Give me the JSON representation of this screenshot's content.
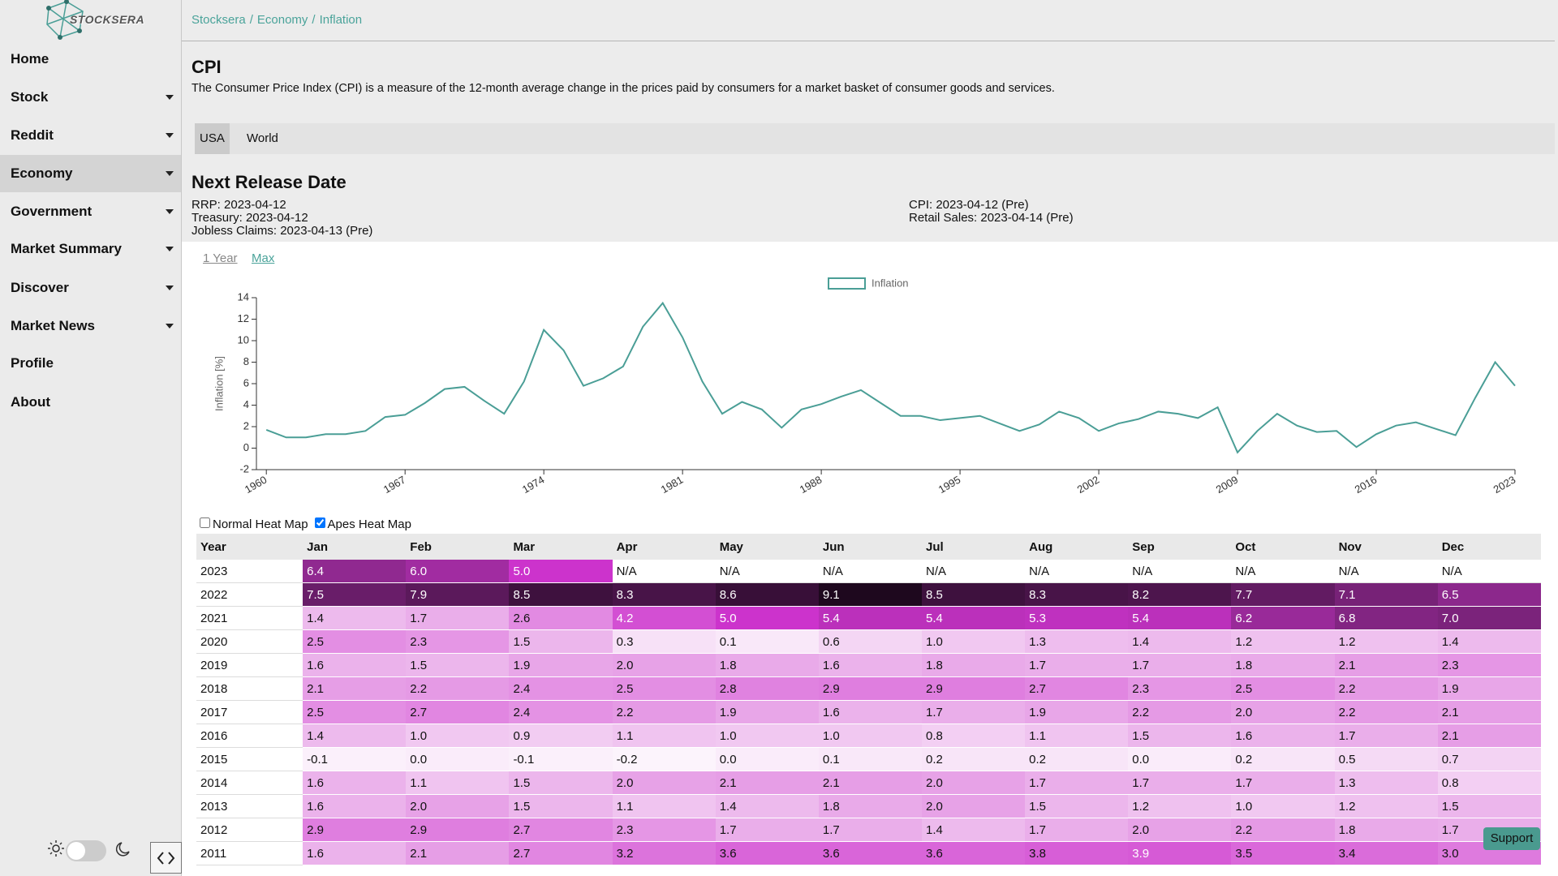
{
  "sidebar": {
    "logo": "STOCKSERA",
    "items": [
      {
        "label": "Home",
        "dropdown": false,
        "active": false
      },
      {
        "label": "Stock",
        "dropdown": true,
        "active": false
      },
      {
        "label": "Reddit",
        "dropdown": true,
        "active": false
      },
      {
        "label": "Economy",
        "dropdown": true,
        "active": true
      },
      {
        "label": "Government",
        "dropdown": true,
        "active": false
      },
      {
        "label": "Market Summary",
        "dropdown": true,
        "active": false
      },
      {
        "label": "Discover",
        "dropdown": true,
        "active": false
      },
      {
        "label": "Market News",
        "dropdown": true,
        "active": false
      },
      {
        "label": "Profile",
        "dropdown": false,
        "active": false
      },
      {
        "label": "About",
        "dropdown": false,
        "active": false
      }
    ]
  },
  "breadcrumb": {
    "items": [
      "Stocksera",
      "Economy",
      "Inflation"
    ],
    "separator": "/"
  },
  "header": {
    "title": "CPI",
    "description": "The Consumer Price Index (CPI) is a measure of the 12-month average change in the prices paid by consumers for a market basket of consumer goods and services."
  },
  "tabs": [
    {
      "label": "USA",
      "active": true
    },
    {
      "label": "World",
      "active": false
    }
  ],
  "release": {
    "title": "Next Release Date",
    "columns": [
      [
        "RRP: 2023-04-12",
        "Treasury: 2023-04-12",
        "Jobless Claims: 2023-04-13 (Pre)"
      ],
      [
        "CPI: 2023-04-12 (Pre)",
        "Retail Sales: 2023-04-14 (Pre)"
      ]
    ]
  },
  "range_buttons": [
    {
      "label": "1 Year",
      "active": false
    },
    {
      "label": "Max",
      "active": true
    }
  ],
  "chart_data": {
    "type": "line",
    "y_label": "Inflation [%]",
    "x": [
      1960,
      1961,
      1962,
      1963,
      1964,
      1965,
      1966,
      1967,
      1968,
      1969,
      1970,
      1971,
      1972,
      1973,
      1974,
      1975,
      1976,
      1977,
      1978,
      1979,
      1980,
      1981,
      1982,
      1983,
      1984,
      1985,
      1986,
      1987,
      1988,
      1989,
      1990,
      1991,
      1992,
      1993,
      1994,
      1995,
      1996,
      1997,
      1998,
      1999,
      2000,
      2001,
      2002,
      2003,
      2004,
      2005,
      2006,
      2007,
      2008,
      2009,
      2010,
      2011,
      2012,
      2013,
      2014,
      2015,
      2016,
      2017,
      2018,
      2019,
      2020,
      2021,
      2022,
      2023
    ],
    "series": [
      {
        "name": "Inflation",
        "color": "#4a9e96",
        "values": [
          1.7,
          1.0,
          1.0,
          1.3,
          1.3,
          1.6,
          2.9,
          3.1,
          4.2,
          5.5,
          5.7,
          4.4,
          3.2,
          6.2,
          11.0,
          9.1,
          5.8,
          6.5,
          7.6,
          11.3,
          13.5,
          10.3,
          6.2,
          3.2,
          4.3,
          3.6,
          1.9,
          3.6,
          4.1,
          4.8,
          5.4,
          4.2,
          3.0,
          3.0,
          2.6,
          2.8,
          3.0,
          2.3,
          1.6,
          2.2,
          3.4,
          2.8,
          1.6,
          2.3,
          2.7,
          3.4,
          3.2,
          2.8,
          3.8,
          -0.4,
          1.6,
          3.2,
          2.1,
          1.5,
          1.6,
          0.1,
          1.3,
          2.1,
          2.4,
          1.8,
          1.2,
          4.7,
          8.0,
          5.8
        ]
      }
    ],
    "xlim": [
      1959.5,
      2023
    ],
    "xticks": [
      1960,
      1967,
      1974,
      1981,
      1988,
      1995,
      2002,
      2009,
      2016,
      2023
    ],
    "ylim": [
      -2,
      14
    ],
    "yticks": [
      -2,
      0,
      2,
      4,
      6,
      8,
      10,
      12,
      14
    ],
    "grid": false,
    "legend": "top"
  },
  "heatmap_options": [
    {
      "label": "Normal Heat Map",
      "checked": false
    },
    {
      "label": "Apes Heat Map",
      "checked": true
    }
  ],
  "table": {
    "columns": [
      "Year",
      "Jan",
      "Feb",
      "Mar",
      "Apr",
      "May",
      "Jun",
      "Jul",
      "Aug",
      "Sep",
      "Oct",
      "Nov",
      "Dec"
    ],
    "rows": [
      [
        "2023",
        "6.4",
        "6.0",
        "5.0",
        "N/A",
        "N/A",
        "N/A",
        "N/A",
        "N/A",
        "N/A",
        "N/A",
        "N/A",
        "N/A"
      ],
      [
        "2022",
        "7.5",
        "7.9",
        "8.5",
        "8.3",
        "8.6",
        "9.1",
        "8.5",
        "8.3",
        "8.2",
        "7.7",
        "7.1",
        "6.5"
      ],
      [
        "2021",
        "1.4",
        "1.7",
        "2.6",
        "4.2",
        "5.0",
        "5.4",
        "5.4",
        "5.3",
        "5.4",
        "6.2",
        "6.8",
        "7.0"
      ],
      [
        "2020",
        "2.5",
        "2.3",
        "1.5",
        "0.3",
        "0.1",
        "0.6",
        "1.0",
        "1.3",
        "1.4",
        "1.2",
        "1.2",
        "1.4"
      ],
      [
        "2019",
        "1.6",
        "1.5",
        "1.9",
        "2.0",
        "1.8",
        "1.6",
        "1.8",
        "1.7",
        "1.7",
        "1.8",
        "2.1",
        "2.3"
      ],
      [
        "2018",
        "2.1",
        "2.2",
        "2.4",
        "2.5",
        "2.8",
        "2.9",
        "2.9",
        "2.7",
        "2.3",
        "2.5",
        "2.2",
        "1.9"
      ],
      [
        "2017",
        "2.5",
        "2.7",
        "2.4",
        "2.2",
        "1.9",
        "1.6",
        "1.7",
        "1.9",
        "2.2",
        "2.0",
        "2.2",
        "2.1"
      ],
      [
        "2016",
        "1.4",
        "1.0",
        "0.9",
        "1.1",
        "1.0",
        "1.0",
        "0.8",
        "1.1",
        "1.5",
        "1.6",
        "1.7",
        "2.1"
      ],
      [
        "2015",
        "-0.1",
        "0.0",
        "-0.1",
        "-0.2",
        "0.0",
        "0.1",
        "0.2",
        "0.2",
        "0.0",
        "0.2",
        "0.5",
        "0.7"
      ],
      [
        "2014",
        "1.6",
        "1.1",
        "1.5",
        "2.0",
        "2.1",
        "2.1",
        "2.0",
        "1.7",
        "1.7",
        "1.7",
        "1.3",
        "0.8"
      ],
      [
        "2013",
        "1.6",
        "2.0",
        "1.5",
        "1.1",
        "1.4",
        "1.8",
        "2.0",
        "1.5",
        "1.2",
        "1.0",
        "1.2",
        "1.5"
      ],
      [
        "2012",
        "2.9",
        "2.9",
        "2.7",
        "2.3",
        "1.7",
        "1.7",
        "1.4",
        "1.7",
        "2.0",
        "2.2",
        "1.8",
        "1.7"
      ],
      [
        "2011",
        "1.6",
        "2.1",
        "2.7",
        "3.2",
        "3.6",
        "3.6",
        "3.6",
        "3.8",
        "3.9",
        "3.5",
        "3.4",
        "3.0"
      ]
    ]
  },
  "support_button": "Support"
}
